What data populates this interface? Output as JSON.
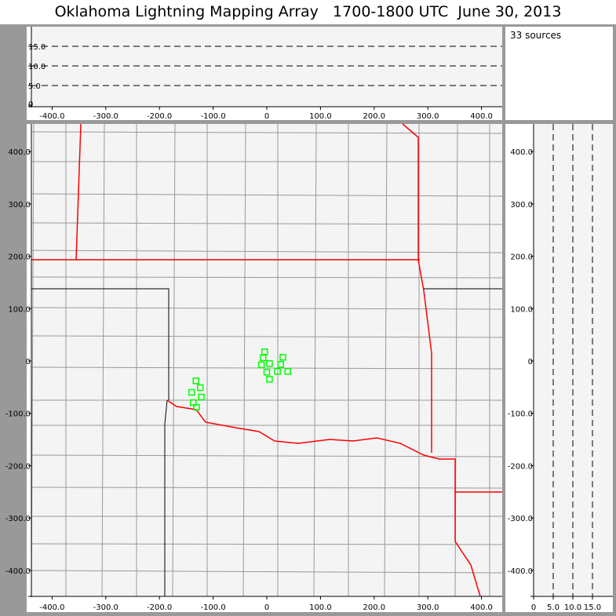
{
  "title": "Oklahoma Lightning Mapping Array   1700-1800 UTC  June 30, 2013",
  "source_count": "33 sources",
  "colors": {
    "plot_bg": "#f4f4f4",
    "frame": "#999999",
    "state_border": "#ff0000",
    "county": "#999999",
    "source": "#00ff00"
  },
  "chart_data": [
    {
      "type": "line",
      "panel": "altitude vs east-west",
      "xticks": [
        "-400.0",
        "-300.0",
        "-200.0",
        "-100.0",
        "0",
        "100.0",
        "200.0",
        "300.0",
        "400.0"
      ],
      "xtick_values": [
        -400,
        -300,
        -200,
        -100,
        0,
        100,
        200,
        300,
        400
      ],
      "yticks": [
        "0",
        "5.0",
        "10.0",
        "15.0"
      ],
      "ytick_values": [
        0,
        5,
        10,
        15
      ],
      "dashed_reference_levels": [
        5,
        10,
        15
      ],
      "xlim": [
        -440,
        440
      ],
      "ylim": [
        -0.5,
        20
      ]
    },
    {
      "type": "scatter",
      "panel": "plan view map",
      "xticks": [
        "-400.0",
        "-300.0",
        "-200.0",
        "-100.0",
        "0",
        "100.0",
        "200.0",
        "300.0",
        "400.0"
      ],
      "xtick_values": [
        -400,
        -300,
        -200,
        -100,
        0,
        100,
        200,
        300,
        400
      ],
      "yticks": [
        "-400.0",
        "-300.0",
        "-200.0",
        "-100.0",
        "0",
        "100.0",
        "200.0",
        "300.0",
        "400.0"
      ],
      "ytick_values": [
        -400,
        -300,
        -200,
        -100,
        0,
        100,
        200,
        300,
        400
      ],
      "xlim": [
        -440,
        440
      ],
      "ylim": [
        -450,
        450
      ],
      "points": [
        [
          -4,
          17.5
        ],
        [
          -7,
          6
        ],
        [
          30,
          7
        ],
        [
          5,
          -5
        ],
        [
          -10,
          -7.5
        ],
        [
          26,
          -6.5
        ],
        [
          0,
          -21.5
        ],
        [
          20,
          -20
        ],
        [
          39,
          -20
        ],
        [
          5,
          -35
        ],
        [
          -132,
          -38
        ],
        [
          -124,
          -51
        ],
        [
          -140,
          -60
        ],
        [
          -122,
          -69
        ],
        [
          -137,
          -79.5
        ],
        [
          -131,
          -88.5
        ]
      ]
    },
    {
      "type": "line",
      "panel": "north-south vs altitude",
      "xticks": [
        "0",
        "5.0",
        "10.0",
        "15.0"
      ],
      "xtick_values": [
        0,
        5,
        10,
        15
      ],
      "yticks": [
        "-400.0",
        "-300.0",
        "-200.0",
        "-100.0",
        "0",
        "100.0",
        "200.0",
        "300.0",
        "400.0"
      ],
      "ytick_values": [
        -400,
        -300,
        -200,
        -100,
        0,
        100,
        200,
        300,
        400
      ],
      "dashed_reference_levels": [
        5,
        10,
        15
      ]
    }
  ]
}
